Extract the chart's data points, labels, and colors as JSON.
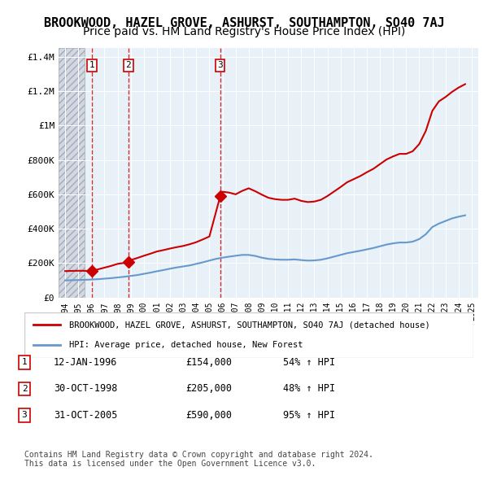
{
  "title": "BROOKWOOD, HAZEL GROVE, ASHURST, SOUTHAMPTON, SO40 7AJ",
  "subtitle": "Price paid vs. HM Land Registry's House Price Index (HPI)",
  "legend_label_red": "BROOKWOOD, HAZEL GROVE, ASHURST, SOUTHAMPTON, SO40 7AJ (detached house)",
  "legend_label_blue": "HPI: Average price, detached house, New Forest",
  "footer_line1": "Contains HM Land Registry data © Crown copyright and database right 2024.",
  "footer_line2": "This data is licensed under the Open Government Licence v3.0.",
  "transactions": [
    {
      "num": "1",
      "date": "12-JAN-1996",
      "price": "£154,000",
      "pct": "54% ↑ HPI",
      "year": 1996.04
    },
    {
      "num": "2",
      "date": "30-OCT-1998",
      "price": "£205,000",
      "pct": "48% ↑ HPI",
      "year": 1998.83
    },
    {
      "num": "3",
      "date": "31-OCT-2005",
      "price": "£590,000",
      "pct": "95% ↑ HPI",
      "year": 2005.83
    }
  ],
  "transaction_values": [
    154000,
    205000,
    590000
  ],
  "ylim": [
    0,
    1450000
  ],
  "yticks": [
    0,
    200000,
    400000,
    600000,
    800000,
    1000000,
    1200000,
    1400000
  ],
  "ytick_labels": [
    "£0",
    "£200K",
    "£400K",
    "£600K",
    "£800K",
    "£1M",
    "£1.2M",
    "£1.4M"
  ],
  "xlim_start": 1993.5,
  "xlim_end": 2025.5,
  "xticks": [
    1994,
    1995,
    1996,
    1997,
    1998,
    1999,
    2000,
    2001,
    2002,
    2003,
    2004,
    2005,
    2006,
    2007,
    2008,
    2009,
    2010,
    2011,
    2012,
    2013,
    2014,
    2015,
    2016,
    2017,
    2018,
    2019,
    2020,
    2021,
    2022,
    2023,
    2024,
    2025
  ],
  "red_color": "#cc0000",
  "blue_color": "#6699cc",
  "dashed_color": "#cc0000",
  "background_plot": "#e8f0f8",
  "background_hatch": "#d0d8e8",
  "hatch_end_year": 1995.5,
  "title_fontsize": 11,
  "subtitle_fontsize": 10,
  "hpi_years": [
    1994,
    1994.5,
    1995,
    1995.5,
    1996,
    1996.5,
    1997,
    1997.5,
    1998,
    1998.5,
    1999,
    1999.5,
    2000,
    2000.5,
    2001,
    2001.5,
    2002,
    2002.5,
    2003,
    2003.5,
    2004,
    2004.5,
    2005,
    2005.5,
    2006,
    2006.5,
    2007,
    2007.5,
    2008,
    2008.5,
    2009,
    2009.5,
    2010,
    2010.5,
    2011,
    2011.5,
    2012,
    2012.5,
    2013,
    2013.5,
    2014,
    2014.5,
    2015,
    2015.5,
    2016,
    2016.5,
    2017,
    2017.5,
    2018,
    2018.5,
    2019,
    2019.5,
    2020,
    2020.5,
    2021,
    2021.5,
    2022,
    2022.5,
    2023,
    2023.5,
    2024,
    2024.5
  ],
  "hpi_values": [
    100000,
    101000,
    102000,
    103500,
    105000,
    107000,
    110000,
    113000,
    117000,
    121000,
    126000,
    131000,
    138000,
    145000,
    153000,
    160000,
    168000,
    175000,
    181000,
    187000,
    196000,
    205000,
    215000,
    225000,
    232000,
    238000,
    243000,
    248000,
    248000,
    242000,
    232000,
    225000,
    222000,
    220000,
    220000,
    222000,
    218000,
    215000,
    216000,
    220000,
    228000,
    238000,
    248000,
    258000,
    265000,
    272000,
    280000,
    288000,
    298000,
    308000,
    315000,
    320000,
    320000,
    325000,
    340000,
    368000,
    410000,
    430000,
    445000,
    460000,
    470000,
    478000
  ],
  "red_years": [
    1994,
    1994.5,
    1995,
    1995.5,
    1996.04,
    1996.5,
    1997,
    1997.5,
    1998,
    1998.83,
    1999,
    1999.5,
    2000,
    2000.5,
    2001,
    2001.5,
    2002,
    2002.5,
    2003,
    2003.5,
    2004,
    2004.5,
    2005,
    2005.83,
    2006,
    2006.5,
    2007,
    2007.5,
    2008,
    2008.5,
    2009,
    2009.5,
    2010,
    2010.5,
    2011,
    2011.5,
    2012,
    2012.5,
    2013,
    2013.5,
    2014,
    2014.5,
    2015,
    2015.5,
    2016,
    2016.5,
    2017,
    2017.5,
    2018,
    2018.5,
    2019,
    2019.5,
    2020,
    2020.5,
    2021,
    2021.5,
    2022,
    2022.5,
    2023,
    2023.5,
    2024,
    2024.5
  ],
  "red_values": [
    154000,
    155000,
    156000,
    155500,
    154000,
    164000,
    174000,
    184000,
    196000,
    205000,
    218000,
    230000,
    243000,
    255000,
    268000,
    276000,
    285000,
    293000,
    300000,
    310000,
    322000,
    338000,
    355000,
    590000,
    615000,
    610000,
    600000,
    620000,
    635000,
    618000,
    598000,
    580000,
    572000,
    568000,
    568000,
    575000,
    562000,
    555000,
    558000,
    568000,
    590000,
    616000,
    642000,
    670000,
    688000,
    706000,
    728000,
    748000,
    775000,
    802000,
    820000,
    835000,
    835000,
    850000,
    892000,
    968000,
    1085000,
    1140000,
    1165000,
    1195000,
    1220000,
    1240000
  ]
}
